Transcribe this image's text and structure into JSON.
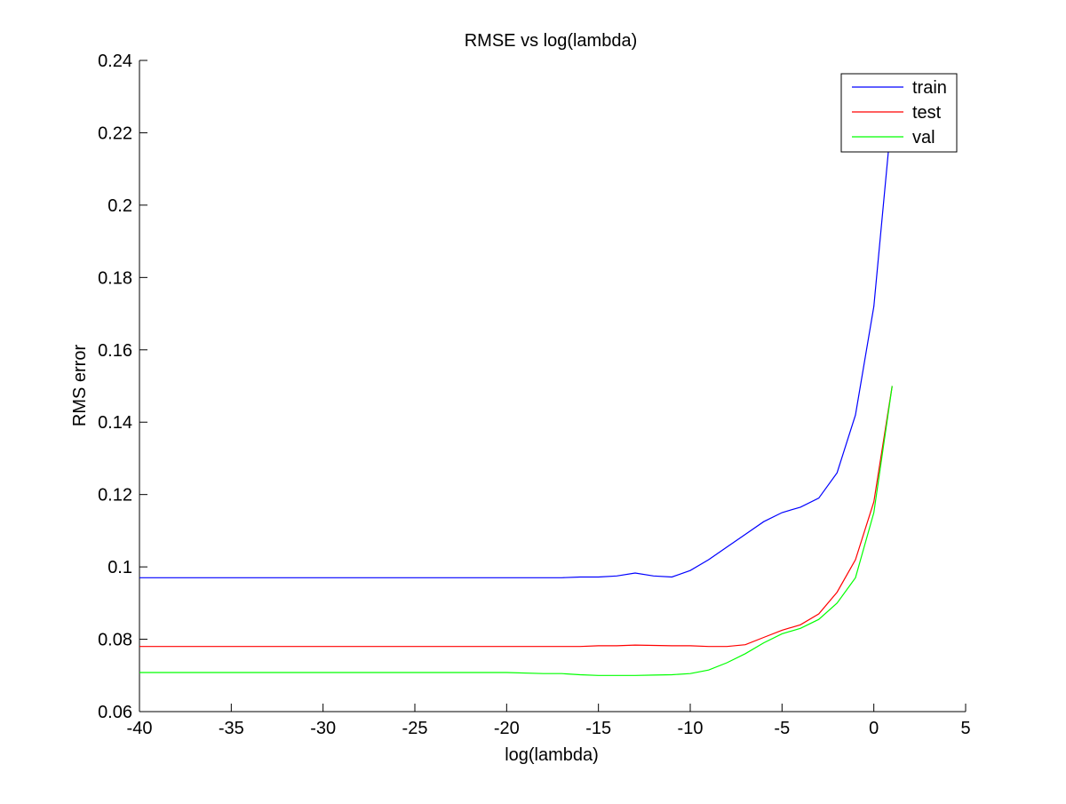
{
  "chart_data": {
    "type": "line",
    "title": "RMSE vs log(lambda)",
    "xlabel": "log(lambda)",
    "ylabel": "RMS error",
    "xlim": [
      -40,
      5
    ],
    "ylim": [
      0.06,
      0.24
    ],
    "xticks": [
      -40,
      -35,
      -30,
      -25,
      -20,
      -15,
      -10,
      -5,
      0,
      5
    ],
    "yticks": [
      0.06,
      0.08,
      0.1,
      0.12,
      0.14,
      0.16,
      0.18,
      0.2,
      0.22,
      0.24
    ],
    "xtick_labels": [
      "-40",
      "-35",
      "-30",
      "-25",
      "-20",
      "-15",
      "-10",
      "-5",
      "0",
      "5"
    ],
    "ytick_labels": [
      "0.06",
      "0.08",
      "0.1",
      "0.12",
      "0.14",
      "0.16",
      "0.18",
      "0.2",
      "0.22",
      "0.24"
    ],
    "grid": false,
    "legend_position": "top-right",
    "x": [
      -40,
      -35,
      -30,
      -25,
      -20,
      -18,
      -17,
      -16,
      -15,
      -14,
      -13,
      -12,
      -11,
      -10,
      -9,
      -8,
      -7,
      -6,
      -5,
      -4,
      -3,
      -2,
      -1,
      0,
      1
    ],
    "series": [
      {
        "name": "train",
        "color": "#0000ff",
        "values": [
          0.097,
          0.097,
          0.097,
          0.097,
          0.097,
          0.097,
          0.097,
          0.0972,
          0.0972,
          0.0975,
          0.0983,
          0.0975,
          0.0972,
          0.099,
          0.102,
          0.1055,
          0.109,
          0.1125,
          0.115,
          0.1165,
          0.119,
          0.126,
          0.142,
          0.172,
          0.226
        ]
      },
      {
        "name": "test",
        "color": "#ff0000",
        "values": [
          0.078,
          0.078,
          0.078,
          0.078,
          0.078,
          0.078,
          0.078,
          0.078,
          0.0782,
          0.0782,
          0.0784,
          0.0783,
          0.0782,
          0.0782,
          0.078,
          0.078,
          0.0785,
          0.0805,
          0.0825,
          0.084,
          0.087,
          0.093,
          0.102,
          0.118,
          0.15
        ]
      },
      {
        "name": "val",
        "color": "#00ff00",
        "values": [
          0.0708,
          0.0708,
          0.0708,
          0.0708,
          0.0708,
          0.0705,
          0.0705,
          0.0702,
          0.07,
          0.07,
          0.07,
          0.0701,
          0.0702,
          0.0705,
          0.0715,
          0.0735,
          0.076,
          0.079,
          0.0815,
          0.083,
          0.0855,
          0.09,
          0.097,
          0.115,
          0.15
        ]
      }
    ]
  }
}
